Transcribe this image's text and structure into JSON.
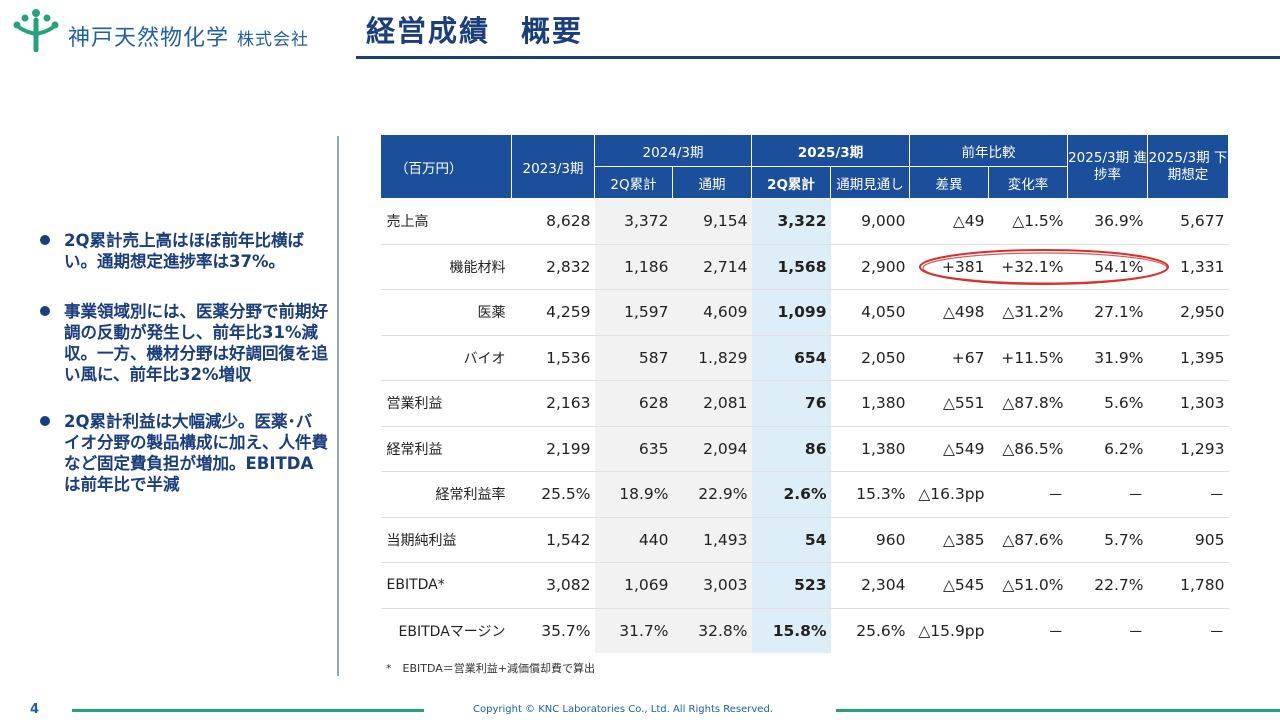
{
  "header": {
    "company_name": "神戸天然物化学",
    "company_suffix": "株式会社",
    "page_title": "経営成績　概要"
  },
  "bullets": [
    "2Q累計売上高はほぼ前年比横ばい。通期想定進捗率は37%。",
    "事業領域別には、医薬分野で前期好調の反動が発生し、前年比31%減収。一方、機材分野は好調回復を追い風に、前年比32%増収",
    "2Q累計利益は大幅減少。医薬･バイオ分野の製品構成に加え、人件費など固定費負担が増加。EBITDAは前年比で半減"
  ],
  "table": {
    "header": {
      "unit": "（百万円）",
      "fy2023": "2023/3期",
      "fy2024": "2024/3期",
      "fy2025": "2025/3期",
      "yoy": "前年比較",
      "progress": "2025/3期 進捗率",
      "second_half": "2025/3期 下期想定",
      "fy2024_2q": "2Q累計",
      "fy2024_full": "通期",
      "fy2025_2q": "2Q累計",
      "fy2025_forecast": "通期見通し",
      "diff": "差異",
      "change_rate": "変化率"
    },
    "rows": [
      {
        "label": "売上高",
        "indent": false,
        "c1": "8,628",
        "c2": "3,372",
        "c3": "9,154",
        "c4": "3,322",
        "c5": "9,000",
        "c6": "△49",
        "c7": "△1.5%",
        "c8": "36.9%",
        "c9": "5,677"
      },
      {
        "label": "機能材料",
        "indent": true,
        "c1": "2,832",
        "c2": "1,186",
        "c3": "2,714",
        "c4": "1,568",
        "c5": "2,900",
        "c6": "+381",
        "c7": "+32.1%",
        "c8": "54.1%",
        "c9": "1,331"
      },
      {
        "label": "医薬",
        "indent": true,
        "c1": "4,259",
        "c2": "1,597",
        "c3": "4,609",
        "c4": "1,099",
        "c5": "4,050",
        "c6": "△498",
        "c7": "△31.2%",
        "c8": "27.1%",
        "c9": "2,950"
      },
      {
        "label": "バイオ",
        "indent": true,
        "c1": "1,536",
        "c2": "587",
        "c3": "1.,829",
        "c4": "654",
        "c5": "2,050",
        "c6": "+67",
        "c7": "+11.5%",
        "c8": "31.9%",
        "c9": "1,395"
      },
      {
        "label": "営業利益",
        "indent": false,
        "c1": "2,163",
        "c2": "628",
        "c3": "2,081",
        "c4": "76",
        "c5": "1,380",
        "c6": "△551",
        "c7": "△87.8%",
        "c8": "5.6%",
        "c9": "1,303"
      },
      {
        "label": "経常利益",
        "indent": false,
        "c1": "2,199",
        "c2": "635",
        "c3": "2,094",
        "c4": "86",
        "c5": "1,380",
        "c6": "△549",
        "c7": "△86.5%",
        "c8": "6.2%",
        "c9": "1,293"
      },
      {
        "label": "経常利益率",
        "indent": true,
        "c1": "25.5%",
        "c2": "18.9%",
        "c3": "22.9%",
        "c4": "2.6%",
        "c5": "15.3%",
        "c6": "△16.3pp",
        "c7": "－",
        "c8": "－",
        "c9": "－"
      },
      {
        "label": "当期純利益",
        "indent": false,
        "c1": "1,542",
        "c2": "440",
        "c3": "1,493",
        "c4": "54",
        "c5": "960",
        "c6": "△385",
        "c7": "△87.6%",
        "c8": "5.7%",
        "c9": "905"
      },
      {
        "label": "EBITDA*",
        "indent": false,
        "c1": "3,082",
        "c2": "1,069",
        "c3": "3,003",
        "c4": "523",
        "c5": "2,304",
        "c6": "△545",
        "c7": "△51.0%",
        "c8": "22.7%",
        "c9": "1,780"
      },
      {
        "label": "EBITDAマージン",
        "indent": true,
        "c1": "35.7%",
        "c2": "31.7%",
        "c3": "32.8%",
        "c4": "15.8%",
        "c5": "25.6%",
        "c6": "△15.9pp",
        "c7": "－",
        "c8": "－",
        "c9": "－"
      }
    ],
    "footnote": "*　EBITDA＝営業利益+減価償却費で算出"
  },
  "footer": {
    "page_number": "4",
    "copyright": "Copyright © KNC Laboratories Co., Ltd. All Rights Reserved."
  },
  "colors": {
    "header_blue": "#1b4f9c",
    "title_navy": "#1a3d7c",
    "highlight_column": "#ddeef9",
    "gray_column": "#f2f2f2",
    "logo_green": "#26a17f",
    "annotation_red": "#d9302c"
  },
  "icons": {
    "logo": "tree-logo-icon",
    "bullet": "bullet-dot-icon"
  }
}
